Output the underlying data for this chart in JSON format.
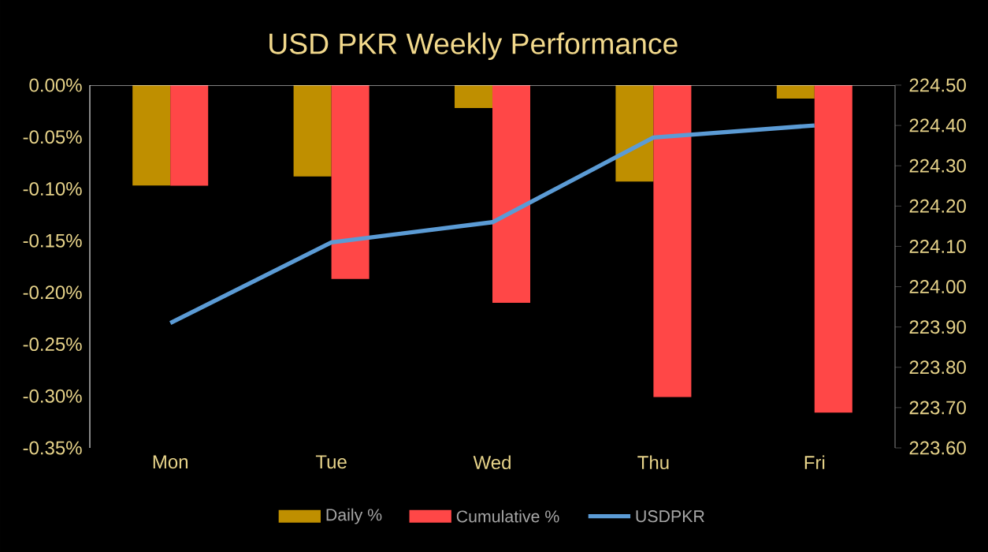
{
  "chart_data": {
    "type": "bar",
    "title": "USD PKR Weekly Performance",
    "categories": [
      "Mon",
      "Tue",
      "Wed",
      "Thu",
      "Fri"
    ],
    "series": [
      {
        "name": "Daily %",
        "color": "#bf8f00",
        "values": [
          -0.097,
          -0.088,
          -0.022,
          -0.093,
          -0.013
        ]
      },
      {
        "name": "Cumulative %",
        "color": "#ff4747",
        "values": [
          -0.097,
          -0.187,
          -0.21,
          -0.301,
          -0.316
        ]
      },
      {
        "name": "USDPKR",
        "type": "line",
        "axis": "y2",
        "color": "#5b9bd5",
        "values": [
          223.91,
          224.11,
          224.16,
          224.37,
          224.4
        ]
      }
    ],
    "ylim": [
      -0.35,
      0
    ],
    "yticks": [
      {
        "value": -0.35,
        "label": "-0.35%"
      },
      {
        "value": -0.3,
        "label": "-0.30%"
      },
      {
        "value": -0.25,
        "label": "-0.25%"
      },
      {
        "value": -0.2,
        "label": "-0.20%"
      },
      {
        "value": -0.15,
        "label": "-0.15%"
      },
      {
        "value": -0.1,
        "label": "-0.10%"
      },
      {
        "value": -0.05,
        "label": "-0.05%"
      },
      {
        "value": 0,
        "label": "0.00%"
      }
    ],
    "y2lim": [
      223.6,
      224.5
    ],
    "y2ticks": [
      {
        "value": 223.6,
        "label": "223.60"
      },
      {
        "value": 223.7,
        "label": "223.70"
      },
      {
        "value": 223.8,
        "label": "223.80"
      },
      {
        "value": 223.9,
        "label": "223.90"
      },
      {
        "value": 224.0,
        "label": "224.00"
      },
      {
        "value": 224.1,
        "label": "224.10"
      },
      {
        "value": 224.2,
        "label": "224.20"
      },
      {
        "value": 224.3,
        "label": "224.30"
      },
      {
        "value": 224.4,
        "label": "224.40"
      },
      {
        "value": 224.5,
        "label": "224.50"
      }
    ],
    "legend": "bottom",
    "grid": false,
    "marker": "none"
  }
}
